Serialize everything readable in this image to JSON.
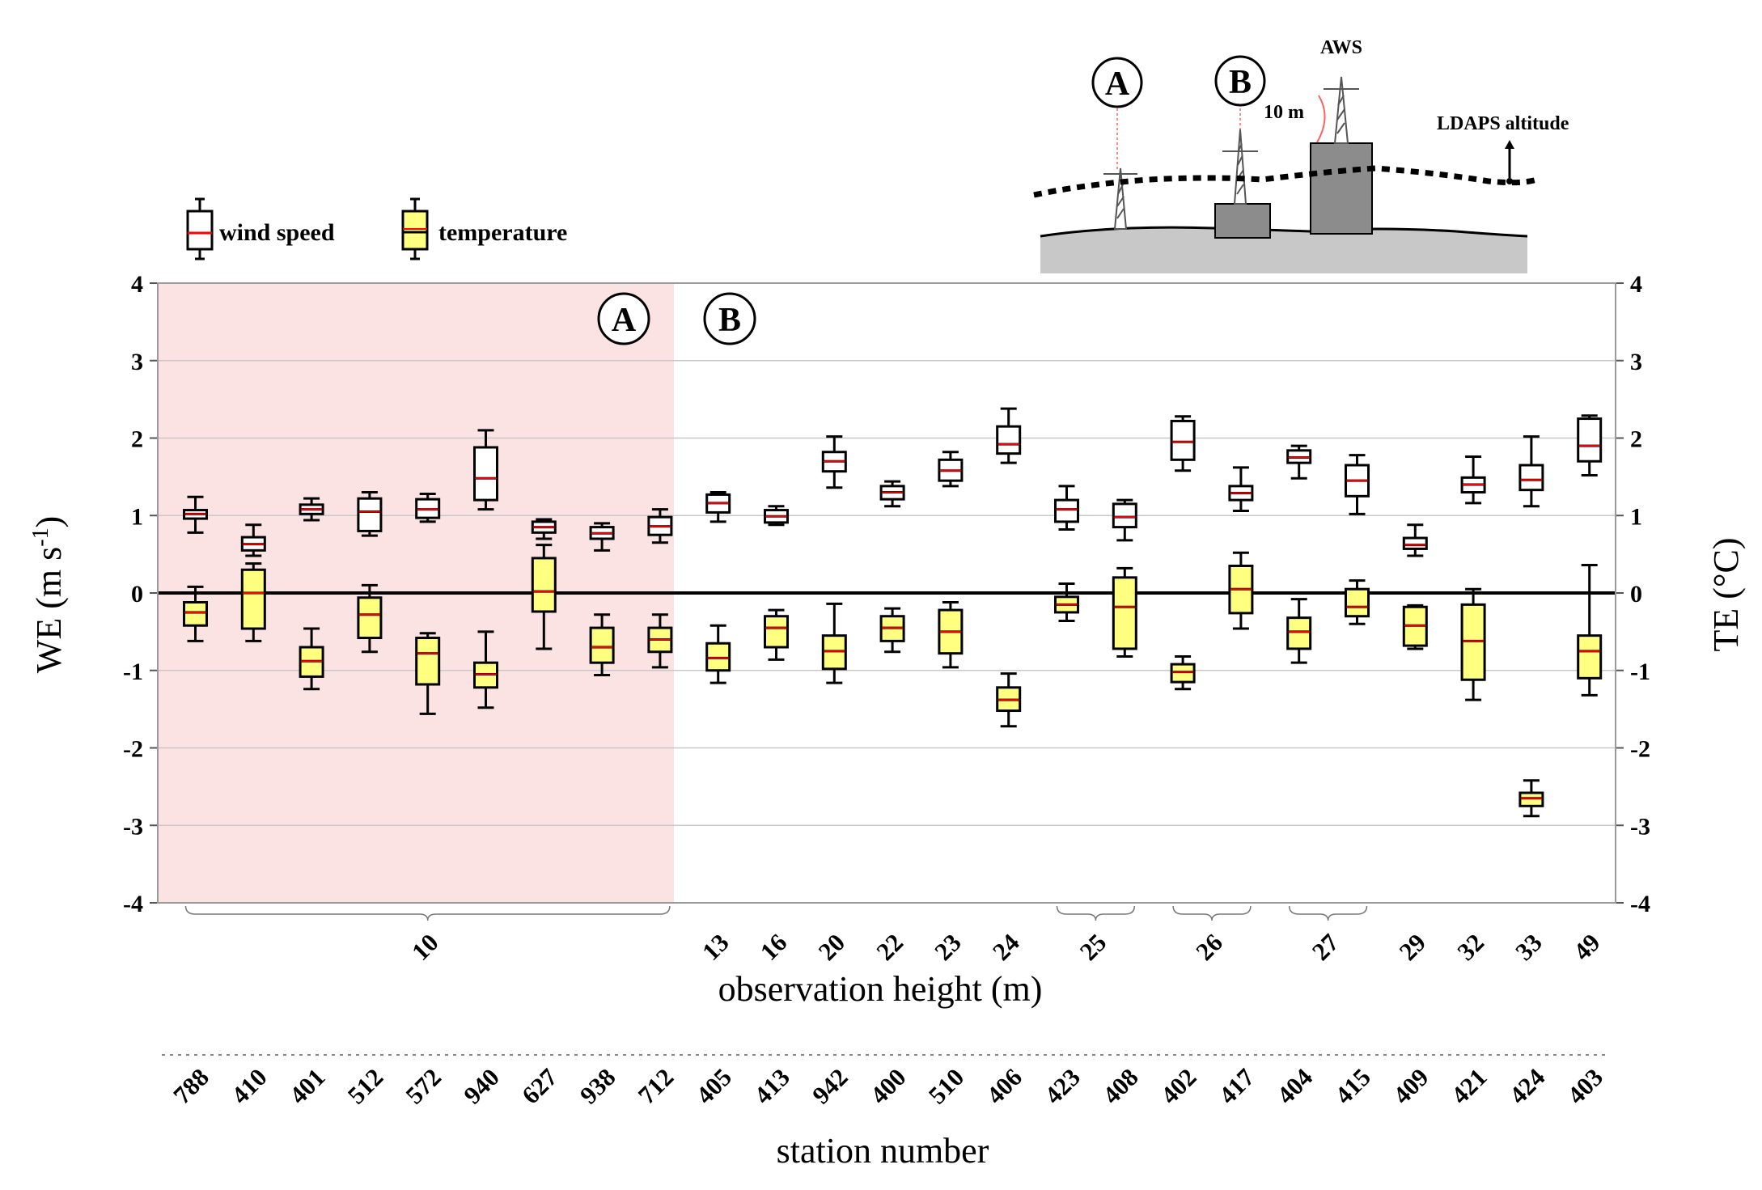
{
  "chart_data": {
    "type": "boxplot",
    "title": "",
    "ylabel_left": "WE (m s",
    "ylabel_left_sup": "-1",
    "ylabel_left_end": ")",
    "ylabel_right": "TE (°C)",
    "ylim": [
      -4,
      4
    ],
    "yticks": [
      -4,
      -3,
      -2,
      -1,
      0,
      1,
      2,
      3,
      4
    ],
    "xlabel": "observation height (m)",
    "xlabel2": "station number",
    "region_labels": [
      "A",
      "B"
    ],
    "legend": [
      {
        "name": "wind speed",
        "fill": "#ffffff"
      },
      {
        "name": "temperature",
        "fill": "#ffff80"
      }
    ],
    "stations": [
      "788",
      "410",
      "401",
      "512",
      "572",
      "940",
      "627",
      "938",
      "712",
      "405",
      "413",
      "942",
      "400",
      "510",
      "406",
      "423",
      "408",
      "402",
      "417",
      "404",
      "415",
      "409",
      "421",
      "424",
      "403"
    ],
    "height_groups": [
      {
        "label": "10",
        "first": 0,
        "last": 8
      },
      {
        "label": "13",
        "first": 9,
        "last": 9
      },
      {
        "label": "16",
        "first": 10,
        "last": 10
      },
      {
        "label": "20",
        "first": 11,
        "last": 11
      },
      {
        "label": "22",
        "first": 12,
        "last": 12
      },
      {
        "label": "23",
        "first": 13,
        "last": 13
      },
      {
        "label": "24",
        "first": 14,
        "last": 14
      },
      {
        "label": "25",
        "first": 15,
        "last": 16
      },
      {
        "label": "26",
        "first": 17,
        "last": 18
      },
      {
        "label": "27",
        "first": 19,
        "last": 20
      },
      {
        "label": "29",
        "first": 21,
        "last": 21
      },
      {
        "label": "32",
        "first": 22,
        "last": 22
      },
      {
        "label": "33",
        "first": 23,
        "last": 23
      },
      {
        "label": "49",
        "first": 24,
        "last": 24
      }
    ],
    "series": [
      {
        "name": "wind speed",
        "boxes": [
          {
            "min": 0.78,
            "q1": 0.96,
            "median": 1.02,
            "q3": 1.07,
            "max": 1.24
          },
          {
            "min": 0.48,
            "q1": 0.55,
            "median": 0.63,
            "q3": 0.72,
            "max": 0.88
          },
          {
            "min": 0.94,
            "q1": 1.02,
            "median": 1.08,
            "q3": 1.14,
            "max": 1.22
          },
          {
            "min": 0.74,
            "q1": 0.8,
            "median": 1.05,
            "q3": 1.22,
            "max": 1.3
          },
          {
            "min": 0.92,
            "q1": 0.97,
            "median": 1.08,
            "q3": 1.21,
            "max": 1.28
          },
          {
            "min": 1.08,
            "q1": 1.2,
            "median": 1.48,
            "q3": 1.88,
            "max": 2.1
          },
          {
            "min": 0.7,
            "q1": 0.78,
            "median": 0.85,
            "q3": 0.92,
            "max": 0.95
          },
          {
            "min": 0.55,
            "q1": 0.7,
            "median": 0.77,
            "q3": 0.85,
            "max": 0.9
          },
          {
            "min": 0.65,
            "q1": 0.75,
            "median": 0.86,
            "q3": 0.98,
            "max": 1.08
          },
          {
            "min": 0.92,
            "q1": 1.04,
            "median": 1.16,
            "q3": 1.27,
            "max": 1.3
          },
          {
            "min": 0.88,
            "q1": 0.91,
            "median": 0.99,
            "q3": 1.07,
            "max": 1.12
          },
          {
            "min": 1.36,
            "q1": 1.57,
            "median": 1.7,
            "q3": 1.82,
            "max": 2.02
          },
          {
            "min": 1.12,
            "q1": 1.21,
            "median": 1.3,
            "q3": 1.38,
            "max": 1.44
          },
          {
            "min": 1.38,
            "q1": 1.45,
            "median": 1.58,
            "q3": 1.72,
            "max": 1.82
          },
          {
            "min": 1.68,
            "q1": 1.8,
            "median": 1.92,
            "q3": 2.15,
            "max": 2.38
          },
          {
            "min": 0.82,
            "q1": 0.92,
            "median": 1.08,
            "q3": 1.2,
            "max": 1.38
          },
          {
            "min": 0.68,
            "q1": 0.85,
            "median": 0.98,
            "q3": 1.15,
            "max": 1.2
          },
          {
            "min": 1.58,
            "q1": 1.72,
            "median": 1.95,
            "q3": 2.22,
            "max": 2.28
          },
          {
            "min": 1.06,
            "q1": 1.2,
            "median": 1.29,
            "q3": 1.38,
            "max": 1.62
          },
          {
            "min": 1.48,
            "q1": 1.68,
            "median": 1.75,
            "q3": 1.84,
            "max": 1.9
          },
          {
            "min": 1.02,
            "q1": 1.25,
            "median": 1.45,
            "q3": 1.65,
            "max": 1.78
          },
          {
            "min": 0.48,
            "q1": 0.57,
            "median": 0.62,
            "q3": 0.71,
            "max": 0.88
          },
          {
            "min": 1.16,
            "q1": 1.3,
            "median": 1.4,
            "q3": 1.49,
            "max": 1.76
          },
          {
            "min": 1.12,
            "q1": 1.33,
            "median": 1.46,
            "q3": 1.65,
            "max": 2.02
          },
          {
            "min": 1.52,
            "q1": 1.7,
            "median": 1.9,
            "q3": 2.25,
            "max": 2.29
          }
        ]
      },
      {
        "name": "temperature",
        "boxes": [
          {
            "min": -0.62,
            "q1": -0.42,
            "median": -0.25,
            "q3": -0.12,
            "max": 0.08
          },
          {
            "min": -0.62,
            "q1": -0.46,
            "median": 0.0,
            "q3": 0.3,
            "max": 0.38
          },
          {
            "min": -1.24,
            "q1": -1.08,
            "median": -0.88,
            "q3": -0.7,
            "max": -0.46
          },
          {
            "min": -0.76,
            "q1": -0.58,
            "median": -0.28,
            "q3": -0.06,
            "max": 0.1
          },
          {
            "min": -1.56,
            "q1": -1.18,
            "median": -0.78,
            "q3": -0.58,
            "max": -0.52
          },
          {
            "min": -1.48,
            "q1": -1.22,
            "median": -1.05,
            "q3": -0.9,
            "max": -0.5
          },
          {
            "min": -0.72,
            "q1": -0.24,
            "median": 0.02,
            "q3": 0.45,
            "max": 0.62
          },
          {
            "min": -1.06,
            "q1": -0.9,
            "median": -0.7,
            "q3": -0.45,
            "max": -0.28
          },
          {
            "min": -0.96,
            "q1": -0.76,
            "median": -0.6,
            "q3": -0.45,
            "max": -0.28
          },
          {
            "min": -1.16,
            "q1": -1.0,
            "median": -0.84,
            "q3": -0.65,
            "max": -0.42
          },
          {
            "min": -0.86,
            "q1": -0.7,
            "median": -0.45,
            "q3": -0.3,
            "max": -0.22
          },
          {
            "min": -1.16,
            "q1": -0.98,
            "median": -0.75,
            "q3": -0.55,
            "max": -0.14
          },
          {
            "min": -0.76,
            "q1": -0.62,
            "median": -0.45,
            "q3": -0.3,
            "max": -0.2
          },
          {
            "min": -0.96,
            "q1": -0.78,
            "median": -0.5,
            "q3": -0.22,
            "max": -0.12
          },
          {
            "min": -1.72,
            "q1": -1.52,
            "median": -1.38,
            "q3": -1.22,
            "max": -1.04
          },
          {
            "min": -0.36,
            "q1": -0.25,
            "median": -0.15,
            "q3": -0.05,
            "max": 0.12
          },
          {
            "min": -0.82,
            "q1": -0.72,
            "median": -0.18,
            "q3": 0.2,
            "max": 0.32
          },
          {
            "min": -1.24,
            "q1": -1.15,
            "median": -1.02,
            "q3": -0.92,
            "max": -0.82
          },
          {
            "min": -0.46,
            "q1": -0.26,
            "median": 0.05,
            "q3": 0.35,
            "max": 0.52
          },
          {
            "min": -0.9,
            "q1": -0.72,
            "median": -0.5,
            "q3": -0.32,
            "max": -0.08
          },
          {
            "min": -0.4,
            "q1": -0.3,
            "median": -0.18,
            "q3": 0.05,
            "max": 0.16
          },
          {
            "min": -0.72,
            "q1": -0.68,
            "median": -0.42,
            "q3": -0.18,
            "max": -0.16
          },
          {
            "min": -1.38,
            "q1": -1.12,
            "median": -0.62,
            "q3": -0.15,
            "max": 0.05
          },
          {
            "min": -2.88,
            "q1": -2.75,
            "median": -2.65,
            "q3": -2.58,
            "max": -2.42
          },
          {
            "min": -1.32,
            "q1": -1.1,
            "median": -0.75,
            "q3": -0.55,
            "max": 0.36
          }
        ]
      }
    ]
  },
  "diagram": {
    "labels": [
      "A",
      "B",
      "AWS",
      "10 m",
      "LDAPS altitude"
    ]
  },
  "colors": {
    "shade_a": "#fbe3e3",
    "temperature_fill": "#ffff80",
    "median_line": "#ff0000",
    "ground": "#c8c8c8",
    "building": "#8c8c8c"
  }
}
